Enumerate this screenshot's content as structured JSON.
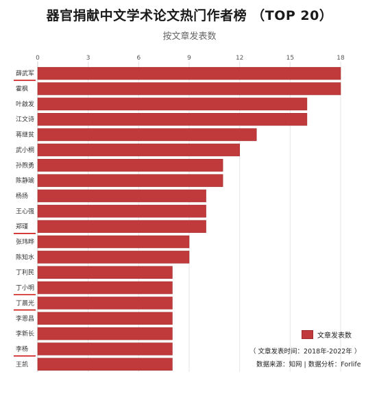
{
  "header": {
    "title": "器官捐献中文学术论文热门作者榜 （TOP 20）",
    "subtitle": "按文章发表数"
  },
  "legend": {
    "label": "文章发表数",
    "color": "#c0393b"
  },
  "notes": {
    "period": "（ 文章发表时间：2018年-2022年 ）",
    "source": "数据来源：知网 | 数据分析：Forlife"
  },
  "chart_data": {
    "type": "bar",
    "orientation": "horizontal",
    "categories": [
      "薛武军",
      "霍枫",
      "叶啟发",
      "江文诗",
      "蒋继贫",
      "武小桐",
      "孙煦勇",
      "陈静瑜",
      "杨扬",
      "王心强",
      "郑瑾",
      "张玮晔",
      "陈知水",
      "丁利民",
      "丁小明",
      "丁晨光",
      "李恩昌",
      "李新长",
      "李杨",
      "王凯"
    ],
    "values": [
      18,
      18,
      16,
      16,
      13,
      12,
      11,
      11,
      10,
      10,
      10,
      9,
      9,
      8,
      8,
      8,
      8,
      8,
      8,
      8
    ],
    "underlined": [
      "薛武军",
      "郑瑾",
      "丁小明",
      "丁晨光",
      "李杨"
    ],
    "xticks": [
      0,
      3,
      6,
      9,
      12,
      15,
      18
    ],
    "xlim": [
      0,
      18
    ],
    "bar_color": "#c0393b",
    "underline_color": "#cc1111",
    "grid": true
  }
}
